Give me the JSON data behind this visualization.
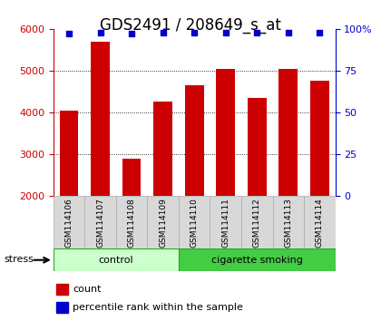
{
  "title": "GDS2491 / 208649_s_at",
  "samples": [
    "GSM114106",
    "GSM114107",
    "GSM114108",
    "GSM114109",
    "GSM114110",
    "GSM114111",
    "GSM114112",
    "GSM114113",
    "GSM114114"
  ],
  "counts": [
    4050,
    5700,
    2900,
    4250,
    4650,
    5050,
    4350,
    5050,
    4750
  ],
  "percentile_ranks": [
    97,
    98,
    97,
    98,
    98,
    98,
    98,
    98,
    98
  ],
  "bar_color": "#cc0000",
  "dot_color": "#0000cc",
  "ylim_left": [
    2000,
    6000
  ],
  "ylim_right": [
    0,
    100
  ],
  "yticks_left": [
    2000,
    3000,
    4000,
    5000,
    6000
  ],
  "yticks_right": [
    0,
    25,
    50,
    75,
    100
  ],
  "groups": [
    {
      "label": "control",
      "start": 0,
      "end": 4,
      "color": "#ccffcc"
    },
    {
      "label": "cigarette smoking",
      "start": 4,
      "end": 9,
      "color": "#44cc44"
    }
  ],
  "stress_label": "stress",
  "legend_count_label": "count",
  "legend_pct_label": "percentile rank within the sample",
  "background_color": "#ffffff",
  "plot_bg_color": "#ffffff",
  "tick_label_color_left": "#cc0000",
  "tick_label_color_right": "#0000cc",
  "title_fontsize": 12,
  "bar_width": 0.6,
  "grid_dotted_at": [
    3000,
    4000,
    5000
  ]
}
